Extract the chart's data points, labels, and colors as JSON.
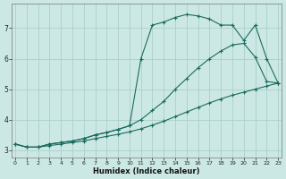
{
  "xlabel": "Humidex (Indice chaleur)",
  "bg_color": "#cce8e4",
  "grid_color": "#aacfca",
  "line_color": "#1a6b5e",
  "x_ticks": [
    0,
    1,
    2,
    3,
    4,
    5,
    6,
    7,
    8,
    9,
    10,
    11,
    12,
    13,
    14,
    15,
    16,
    17,
    18,
    19,
    20,
    21,
    22,
    23
  ],
  "y_ticks": [
    3,
    4,
    5,
    6,
    7
  ],
  "xlim": [
    -0.3,
    23.3
  ],
  "ylim": [
    2.75,
    7.8
  ],
  "line1_x": [
    0,
    1,
    2,
    3,
    4,
    5,
    6,
    7,
    8,
    9,
    10,
    11,
    12,
    13,
    14,
    15,
    16,
    17,
    18,
    19,
    20,
    21,
    22,
    23
  ],
  "line1_y": [
    3.2,
    3.1,
    3.1,
    3.15,
    3.2,
    3.25,
    3.3,
    3.38,
    3.45,
    3.52,
    3.6,
    3.7,
    3.82,
    3.95,
    4.1,
    4.25,
    4.4,
    4.55,
    4.68,
    4.8,
    4.9,
    5.0,
    5.1,
    5.2
  ],
  "line2_x": [
    0,
    1,
    2,
    3,
    4,
    5,
    6,
    7,
    8,
    9,
    10,
    11,
    12,
    13,
    14,
    15,
    16,
    17,
    18,
    19,
    20,
    21,
    22,
    23
  ],
  "line2_y": [
    3.2,
    3.1,
    3.1,
    3.2,
    3.25,
    3.3,
    3.38,
    3.5,
    3.58,
    3.68,
    3.8,
    4.0,
    4.3,
    4.6,
    5.0,
    5.35,
    5.7,
    6.0,
    6.25,
    6.45,
    6.5,
    6.05,
    5.25,
    5.2
  ],
  "line3_x": [
    0,
    1,
    2,
    3,
    4,
    5,
    6,
    7,
    8,
    9,
    10,
    11,
    12,
    13,
    14,
    15,
    16,
    17,
    18,
    19,
    20,
    21,
    22,
    23
  ],
  "line3_y": [
    3.2,
    3.1,
    3.1,
    3.2,
    3.25,
    3.3,
    3.38,
    3.5,
    3.58,
    3.68,
    3.8,
    6.0,
    7.1,
    7.2,
    7.35,
    7.45,
    7.4,
    7.3,
    7.1,
    7.1,
    6.6,
    7.1,
    6.0,
    5.2
  ]
}
